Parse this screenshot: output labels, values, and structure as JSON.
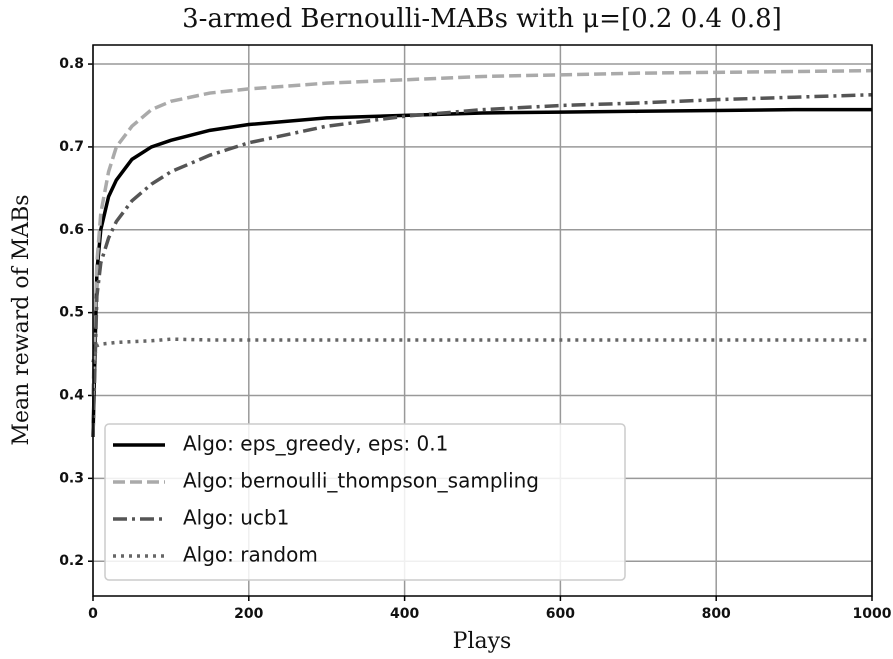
{
  "chart_data": {
    "type": "line",
    "title": "3-armed Bernoulli-MABs with μ=[0.2 0.4 0.8]",
    "xlabel": "Plays",
    "ylabel": "Mean reward of MABs",
    "x": [
      0,
      5,
      10,
      20,
      30,
      50,
      75,
      100,
      150,
      200,
      300,
      400,
      500,
      600,
      700,
      800,
      900,
      1000
    ],
    "series": [
      {
        "name": "Algo: eps_greedy, eps: 0.1",
        "color": "#000000",
        "linestyle": "solid",
        "values": [
          0.35,
          0.55,
          0.6,
          0.64,
          0.66,
          0.685,
          0.7,
          0.708,
          0.72,
          0.727,
          0.735,
          0.738,
          0.741,
          0.742,
          0.743,
          0.744,
          0.745,
          0.745
        ]
      },
      {
        "name": "Algo: bernoulli_thompson_sampling",
        "color": "#aaaaaa",
        "linestyle": "dashed",
        "values": [
          0.4,
          0.56,
          0.62,
          0.67,
          0.7,
          0.725,
          0.745,
          0.755,
          0.765,
          0.77,
          0.777,
          0.781,
          0.785,
          0.787,
          0.789,
          0.79,
          0.791,
          0.792
        ]
      },
      {
        "name": "Algo: ucb1",
        "color": "#555555",
        "linestyle": "dashdot",
        "values": [
          0.35,
          0.52,
          0.56,
          0.59,
          0.61,
          0.635,
          0.655,
          0.67,
          0.69,
          0.705,
          0.725,
          0.737,
          0.745,
          0.75,
          0.753,
          0.757,
          0.76,
          0.763
        ]
      },
      {
        "name": "Algo: random",
        "color": "#666666",
        "linestyle": "dotted",
        "values": [
          0.44,
          0.46,
          0.462,
          0.463,
          0.464,
          0.465,
          0.466,
          0.468,
          0.467,
          0.467,
          0.467,
          0.467,
          0.467,
          0.467,
          0.467,
          0.467,
          0.467,
          0.467
        ]
      }
    ],
    "xlim": [
      0,
      1000
    ],
    "xticks": [
      0,
      200,
      400,
      600,
      800,
      1000
    ],
    "ylim": [
      0.158,
      0.823
    ],
    "yticks": [
      0.2,
      0.3,
      0.4,
      0.5,
      0.6,
      0.7,
      0.8
    ],
    "grid": true,
    "legend": "lower left"
  }
}
